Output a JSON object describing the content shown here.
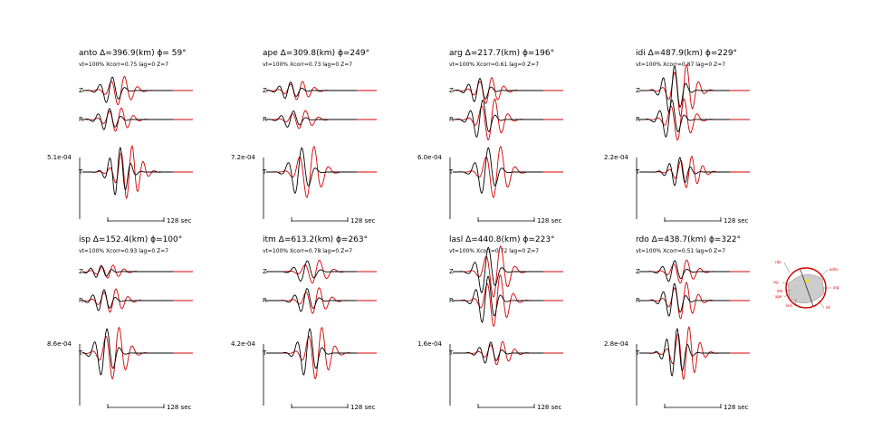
{
  "colors": {
    "observed": "#000000",
    "synthetic": "#d40000",
    "beachball_fill": "#cccccc"
  },
  "scale_label": "128 sec",
  "chart_data": {
    "type": "line",
    "description_series": [
      "observed",
      "synthetic"
    ],
    "components": [
      "Z",
      "R",
      "T"
    ],
    "stations": [
      {
        "id": "anto",
        "title": "anto  Δ=396.9(km)  ϕ= 59°",
        "info": "vt=100% Xcorr=0.75 lag=0 Z=7",
        "amp": "5.1e-04",
        "traces": [
          {
            "comp": "Z",
            "a": 0.55,
            "shift": -2,
            "f": 1.0
          },
          {
            "comp": "R",
            "a": 0.45,
            "shift": -3,
            "f": 1.1
          },
          {
            "comp": "T",
            "a": 1.0,
            "shift": 1,
            "f": 1.2
          }
        ]
      },
      {
        "id": "ape",
        "title": "ape   Δ=309.8(km)  ϕ=249°",
        "info": "vt=100% Xcorr=0.73 lag=0 Z=7",
        "amp": "7.2e-04",
        "traces": [
          {
            "comp": "Z",
            "a": 0.35,
            "shift": -4,
            "f": 1.1
          },
          {
            "comp": "R",
            "a": 0.35,
            "shift": -3,
            "f": 1.0
          },
          {
            "comp": "T",
            "a": 1.0,
            "shift": 0,
            "f": 0.9
          }
        ]
      },
      {
        "id": "arg",
        "title": "arg   Δ=217.7(km)  ϕ=196°",
        "info": "vt=100% Xcorr=0.61 lag=0 Z=7",
        "amp": "6.0e-04",
        "traces": [
          {
            "comp": "Z",
            "a": 0.5,
            "shift": -3,
            "f": 1.1
          },
          {
            "comp": "R",
            "a": 0.8,
            "shift": -2,
            "f": 1.0
          },
          {
            "comp": "T",
            "a": 1.0,
            "shift": 0,
            "f": 0.9
          }
        ]
      },
      {
        "id": "idi",
        "title": "idi   Δ=487.9(km)  ϕ=229°",
        "info": "vt=100% Xcorr=0.87 lag=0 Z=7",
        "amp": "2.2e-04",
        "traces": [
          {
            "comp": "Z",
            "a": 1.0,
            "shift": 0,
            "f": 1.1
          },
          {
            "comp": "R",
            "a": 0.8,
            "shift": -1,
            "f": 1.0
          },
          {
            "comp": "T",
            "a": 0.6,
            "shift": 2,
            "f": 1.2
          }
        ]
      },
      {
        "id": "isp",
        "title": "isp   Δ=152.4(km)  ϕ=100°",
        "info": "vt=100% Xcorr=0.93 lag=0 Z=7",
        "amp": "8.6e-04",
        "traces": [
          {
            "comp": "Z",
            "a": 0.25,
            "shift": -6,
            "f": 1.2
          },
          {
            "comp": "R",
            "a": 0.45,
            "shift": -5,
            "f": 1.1
          },
          {
            "comp": "T",
            "a": 1.0,
            "shift": -4,
            "f": 1.0
          }
        ]
      },
      {
        "id": "itm",
        "title": "itm   Δ=613.2(km)  ϕ=263°",
        "info": "vt=100% Xcorr=0.78 lag=0 Z=7",
        "amp": "4.2e-04",
        "traces": [
          {
            "comp": "Z",
            "a": 0.45,
            "shift": 2,
            "f": 0.9
          },
          {
            "comp": "R",
            "a": 0.5,
            "shift": 2,
            "f": 1.0
          },
          {
            "comp": "T",
            "a": 1.0,
            "shift": 3,
            "f": 1.0
          }
        ]
      },
      {
        "id": "lasl",
        "title": "lasl  Δ=440.8(km)  ϕ=223°",
        "info": "vt=100% Xcorr=0.72 lag=0 Z=7",
        "amp": "1.6e-04",
        "traces": [
          {
            "comp": "Z",
            "a": 1.0,
            "shift": 0,
            "f": 0.9
          },
          {
            "comp": "R",
            "a": 1.0,
            "shift": 0,
            "f": 1.0
          },
          {
            "comp": "T",
            "a": 0.45,
            "shift": 1,
            "f": 1.1
          }
        ]
      },
      {
        "id": "rdo",
        "title": "rdo   Δ=438.7(km)  ϕ=322°",
        "info": "vt=100% Xcorr=0.51 lag=0 Z=7",
        "amp": "2.8e-04",
        "traces": [
          {
            "comp": "Z",
            "a": 0.45,
            "shift": 0,
            "f": 1.0
          },
          {
            "comp": "R",
            "a": 0.7,
            "shift": 0,
            "f": 1.1
          },
          {
            "comp": "T",
            "a": 1.0,
            "shift": 1,
            "f": 1.2
          }
        ]
      }
    ],
    "beachball_stations": [
      "rdo",
      "anto",
      "isp",
      "itm",
      "ape",
      "lasl",
      "arg",
      "idi"
    ]
  }
}
